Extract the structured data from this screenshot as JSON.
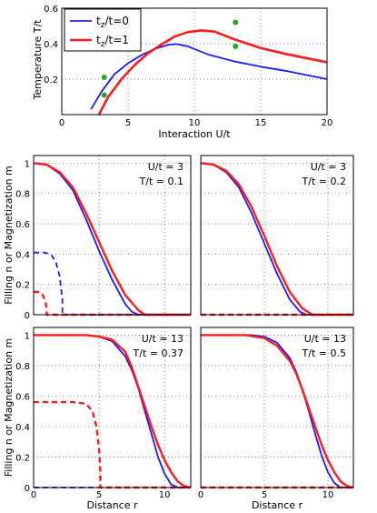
{
  "chart_data": [
    {
      "type": "line",
      "xlabel": "Interaction U/t",
      "ylabel": "Temperature T/t",
      "xlim": [
        0,
        20
      ],
      "ylim": [
        0,
        0.6
      ],
      "xticks": [
        "0",
        "5",
        "10",
        "15",
        "20"
      ],
      "yticks": [
        "0.2",
        "0.4",
        "0.6"
      ],
      "grid": true,
      "legend": "top-left",
      "series": [
        {
          "name": "t_z/t=0",
          "color": "#1a1aff",
          "x": [
            2.2,
            3,
            4,
            5,
            6,
            7,
            8,
            8.6,
            9.5,
            11,
            13,
            15,
            17,
            20
          ],
          "y": [
            0.03,
            0.13,
            0.23,
            0.29,
            0.335,
            0.37,
            0.393,
            0.398,
            0.385,
            0.34,
            0.3,
            0.27,
            0.245,
            0.2
          ]
        },
        {
          "name": "t_z/t=1",
          "color": "#ff1a1a",
          "x": [
            2.8,
            3.5,
            4.5,
            5.5,
            6.5,
            7.5,
            8.5,
            9.5,
            10.5,
            11.5,
            13,
            15,
            17,
            20
          ],
          "y": [
            0.0,
            0.1,
            0.2,
            0.28,
            0.345,
            0.395,
            0.44,
            0.465,
            0.475,
            0.468,
            0.425,
            0.375,
            0.34,
            0.295
          ]
        }
      ],
      "points": {
        "color": "#22aa22",
        "x": [
          3.2,
          3.2,
          13.1,
          13.1
        ],
        "y": [
          0.21,
          0.11,
          0.52,
          0.385
        ]
      },
      "legend_labels": [
        {
          "main": "t",
          "sub": "z",
          "rest": "/t=0"
        },
        {
          "main": "t",
          "sub": "z",
          "rest": "/t=1"
        }
      ]
    },
    {
      "type": "line",
      "panel": "top-left",
      "annotation": [
        "U/t = 3",
        "T/t = 0.1"
      ],
      "xlim": [
        0,
        12
      ],
      "ylim": [
        0,
        1.05
      ],
      "series": [
        {
          "color": "#1a1aff",
          "style": "solid",
          "x": [
            0,
            1,
            2,
            3,
            4,
            5,
            6,
            7,
            7.5,
            8,
            12
          ],
          "y": [
            1.0,
            0.99,
            0.93,
            0.82,
            0.63,
            0.42,
            0.23,
            0.07,
            0.02,
            0.0,
            0.0
          ]
        },
        {
          "color": "#ff1a1a",
          "style": "solid",
          "x": [
            0,
            1,
            2,
            3,
            4,
            5,
            6,
            7,
            8,
            8.5,
            12
          ],
          "y": [
            1.0,
            0.99,
            0.94,
            0.84,
            0.67,
            0.48,
            0.29,
            0.13,
            0.03,
            0.0,
            0.0
          ]
        },
        {
          "color": "#1a1aff",
          "style": "dashed",
          "x": [
            0,
            0.8,
            1.3,
            1.7,
            2.0,
            2.2,
            2.2,
            12
          ],
          "y": [
            0.41,
            0.41,
            0.4,
            0.35,
            0.25,
            0.1,
            0.0,
            0.0
          ]
        },
        {
          "color": "#ff1a1a",
          "style": "dashed",
          "x": [
            0,
            0.4,
            0.7,
            0.9,
            1.0,
            1.0,
            12
          ],
          "y": [
            0.15,
            0.15,
            0.13,
            0.09,
            0.04,
            0.0,
            0.0
          ]
        }
      ],
      "yticks": [
        "0",
        "0.2",
        "0.4",
        "0.6",
        "0.8",
        "1"
      ]
    },
    {
      "type": "line",
      "panel": "top-right",
      "annotation": [
        "U/t = 3",
        "T/t = 0.2"
      ],
      "xlim": [
        0,
        12
      ],
      "ylim": [
        0,
        1.05
      ],
      "series": [
        {
          "color": "#1a1aff",
          "style": "solid",
          "x": [
            0,
            1,
            2,
            3,
            4,
            5,
            6,
            7,
            7.8,
            8.3,
            12
          ],
          "y": [
            1.0,
            0.99,
            0.94,
            0.84,
            0.67,
            0.47,
            0.27,
            0.1,
            0.02,
            0.0,
            0.0
          ]
        },
        {
          "color": "#ff1a1a",
          "style": "solid",
          "x": [
            0,
            1,
            2,
            3,
            4,
            5,
            6,
            7,
            8,
            8.8,
            12
          ],
          "y": [
            1.0,
            0.99,
            0.95,
            0.86,
            0.71,
            0.52,
            0.32,
            0.15,
            0.04,
            0.0,
            0.0
          ]
        },
        {
          "color": "#1a1aff",
          "style": "dashed",
          "x": [
            0,
            12
          ],
          "y": [
            0,
            0
          ]
        },
        {
          "color": "#ff1a1a",
          "style": "dashed",
          "x": [
            0,
            12
          ],
          "y": [
            0,
            0
          ]
        }
      ]
    },
    {
      "type": "line",
      "panel": "bottom-left",
      "annotation": [
        "U/t = 13",
        "T/t = 0.37"
      ],
      "xlabel": "Distance r",
      "xlim": [
        0,
        12
      ],
      "ylim": [
        0,
        1.05
      ],
      "xticks": [
        "0",
        "5",
        "10"
      ],
      "series": [
        {
          "color": "#1a1aff",
          "style": "solid",
          "x": [
            0,
            4,
            5,
            6,
            7,
            7.5,
            8,
            8.5,
            9,
            9.5,
            10,
            10.5,
            11,
            12
          ],
          "y": [
            1.0,
            1.0,
            0.99,
            0.96,
            0.86,
            0.77,
            0.65,
            0.5,
            0.35,
            0.2,
            0.09,
            0.02,
            0.0,
            0.0
          ]
        },
        {
          "color": "#ff1a1a",
          "style": "solid",
          "x": [
            0,
            4,
            5,
            6,
            7,
            7.5,
            8,
            8.5,
            9,
            9.5,
            10,
            10.5,
            11,
            11.5,
            12
          ],
          "y": [
            1.0,
            1.0,
            0.99,
            0.97,
            0.89,
            0.79,
            0.66,
            0.53,
            0.4,
            0.28,
            0.18,
            0.1,
            0.04,
            0.01,
            0.0
          ]
        },
        {
          "color": "#1a1aff",
          "style": "dashed",
          "x": [
            0,
            12
          ],
          "y": [
            0,
            0
          ]
        },
        {
          "color": "#ff1a1a",
          "style": "dashed",
          "x": [
            0,
            3,
            4,
            4.5,
            4.8,
            5.0,
            5.1,
            5.1,
            12
          ],
          "y": [
            0.56,
            0.56,
            0.55,
            0.5,
            0.4,
            0.25,
            0.1,
            0.0,
            0.0
          ]
        }
      ],
      "yticks": [
        "0",
        "0.2",
        "0.4",
        "0.6",
        "0.8",
        "1"
      ]
    },
    {
      "type": "line",
      "panel": "bottom-right",
      "annotation": [
        "U/t = 13",
        "T/t = 0.5"
      ],
      "xlabel": "Distance r",
      "xlim": [
        0,
        12
      ],
      "ylim": [
        0,
        1.05
      ],
      "xticks": [
        "0",
        "5",
        "10"
      ],
      "series": [
        {
          "color": "#1a1aff",
          "style": "solid",
          "x": [
            0,
            4,
            5,
            6,
            7,
            7.5,
            8,
            8.5,
            9,
            9.5,
            10,
            10.5,
            11,
            12
          ],
          "y": [
            1.0,
            1.0,
            0.99,
            0.95,
            0.85,
            0.76,
            0.64,
            0.5,
            0.35,
            0.21,
            0.1,
            0.03,
            0.0,
            0.0
          ]
        },
        {
          "color": "#ff1a1a",
          "style": "solid",
          "x": [
            0,
            3.5,
            5,
            6,
            7,
            7.5,
            8,
            8.5,
            9,
            9.5,
            10,
            10.5,
            11,
            11.5,
            12
          ],
          "y": [
            1.0,
            1.0,
            0.98,
            0.93,
            0.83,
            0.75,
            0.64,
            0.52,
            0.4,
            0.28,
            0.18,
            0.1,
            0.04,
            0.01,
            0.0
          ]
        },
        {
          "color": "#1a1aff",
          "style": "dashed",
          "x": [
            0,
            12
          ],
          "y": [
            0,
            0
          ]
        },
        {
          "color": "#ff1a1a",
          "style": "dashed",
          "x": [
            0,
            12
          ],
          "y": [
            0,
            0
          ]
        }
      ]
    }
  ],
  "shared_ylabel": "Filling n or Magnetization m",
  "grid_xticks": [
    "0",
    "5",
    "10"
  ],
  "grid_yticks": [
    "0",
    "0.2",
    "0.4",
    "0.6",
    "0.8",
    "1"
  ]
}
